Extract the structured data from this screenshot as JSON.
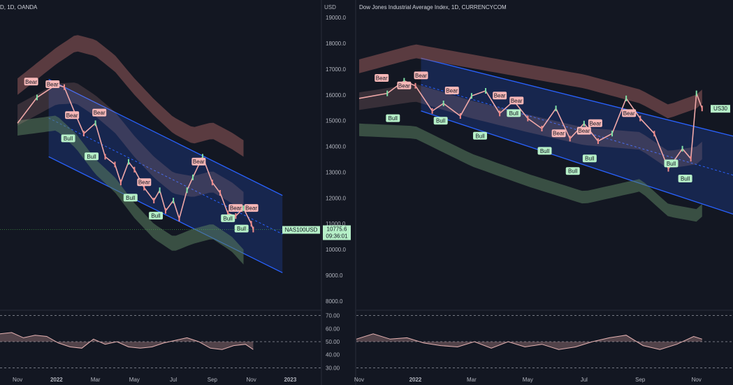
{
  "chart_data": [
    {
      "type": "line",
      "title": "D, 1D, OANDA",
      "currency": "USD",
      "symbol": "NAS100USD",
      "last_price": "10775.6",
      "countdown": "09:36:01",
      "y_ticks": [
        19000.0,
        18000.0,
        17000.0,
        16000.0,
        15000.0,
        14000.0,
        13000.0,
        12000.0,
        11000.0,
        10000.0,
        9000.0,
        8000.0
      ],
      "y_tick_labels": [
        "19000.0",
        "18000.0",
        "17000.0",
        "16000.0",
        "15000.0",
        "14000.0",
        "13000.0",
        "12000.0",
        "11000.0",
        "10000.0",
        "9000.0",
        "8000.0"
      ],
      "ylim": [
        7700,
        19300
      ],
      "x_labels": [
        "Nov",
        "2022",
        "Mar",
        "May",
        "Jul",
        "Sep",
        "Nov",
        "2023"
      ],
      "x_label_month_index": [
        0,
        2,
        4,
        6,
        8,
        10,
        12,
        14
      ],
      "xlim_months": [
        -0.9,
        15.6
      ],
      "series": [
        {
          "name": "price_close",
          "month_index": [
            0,
            1,
            2,
            2.4,
            3,
            3.4,
            4,
            4.5,
            5,
            5.3,
            5.7,
            6,
            6.5,
            7,
            7.3,
            7.6,
            8,
            8.3,
            8.7,
            9,
            9.5,
            10,
            10.4,
            10.8,
            11.2,
            11.6,
            12,
            12.1
          ],
          "values": [
            14900,
            15900,
            16400,
            16300,
            15200,
            14500,
            14900,
            13600,
            13300,
            12600,
            13400,
            13100,
            12400,
            11900,
            12300,
            11500,
            11900,
            11200,
            12300,
            12800,
            13600,
            12600,
            12200,
            11400,
            11300,
            11600,
            11000,
            10775.6
          ]
        }
      ],
      "bands": {
        "upper": {
          "month_index": [
            0,
            2,
            3,
            4,
            5,
            6,
            7,
            8,
            9,
            10,
            11,
            11.6
          ],
          "values": [
            16000,
            17200,
            17700,
            17500,
            16900,
            16000,
            15200,
            14500,
            14100,
            14300,
            13900,
            13600
          ]
        },
        "lower": {
          "month_index": [
            0,
            2,
            3,
            4,
            5,
            6,
            7,
            8,
            9,
            10,
            11,
            11.6
          ],
          "values": [
            15000,
            15200,
            14500,
            13500,
            12800,
            11800,
            11000,
            10500,
            10800,
            11000,
            10500,
            10000
          ]
        }
      },
      "channel": {
        "upper": [
          [
            1.6,
            16600
          ],
          [
            13.6,
            12100
          ]
        ],
        "lower": [
          [
            1.6,
            13600
          ],
          [
            13.6,
            9100
          ]
        ]
      },
      "signals": [
        {
          "label": "Bear",
          "month_index": 0.7,
          "value": 16500
        },
        {
          "label": "Bear",
          "month_index": 1.8,
          "value": 16400
        },
        {
          "label": "Bear",
          "month_index": 2.8,
          "value": 15200
        },
        {
          "label": "Bull",
          "month_index": 2.6,
          "value": 14300
        },
        {
          "label": "Bear",
          "month_index": 4.2,
          "value": 15300
        },
        {
          "label": "Bull",
          "month_index": 3.8,
          "value": 13600
        },
        {
          "label": "Bear",
          "month_index": 6.5,
          "value": 12600
        },
        {
          "label": "Bull",
          "month_index": 5.8,
          "value": 12000
        },
        {
          "label": "Bull",
          "month_index": 7.1,
          "value": 11300
        },
        {
          "label": "Bear",
          "month_index": 9.3,
          "value": 13400
        },
        {
          "label": "Bear",
          "month_index": 11.2,
          "value": 11600
        },
        {
          "label": "Bear",
          "month_index": 12.0,
          "value": 11600
        },
        {
          "label": "Bull",
          "month_index": 10.8,
          "value": 11200
        },
        {
          "label": "Bull",
          "month_index": 11.5,
          "value": 10800
        }
      ],
      "oscillator": {
        "ticks": [
          "70.00",
          "60.00",
          "50.00",
          "40.00",
          "30.00"
        ],
        "tick_values": [
          70,
          60,
          50,
          40,
          30
        ],
        "ylim": [
          27,
          73
        ],
        "levels": [
          70,
          50,
          30
        ],
        "month_index": [
          -0.9,
          -0.3,
          0.3,
          0.9,
          1.5,
          2.1,
          2.7,
          3.3,
          3.9,
          4.5,
          5.1,
          5.7,
          6.3,
          6.9,
          7.5,
          8.1,
          8.7,
          9.3,
          9.9,
          10.5,
          11.1,
          11.7,
          12.1
        ],
        "values": [
          56,
          57,
          53,
          55,
          54,
          49,
          46,
          45,
          52,
          48,
          50,
          46,
          45,
          46,
          49,
          51,
          53,
          50,
          45,
          44,
          47,
          48,
          44
        ]
      }
    },
    {
      "type": "line",
      "title": "Dow Jones Industrial Average Index, 1D, CURRENCYCOM",
      "symbol": "US30",
      "x_labels": [
        "Nov",
        "2022",
        "Mar",
        "May",
        "Jul",
        "Sep",
        "Nov"
      ],
      "x_label_month_index": [
        0,
        2,
        4,
        6,
        8,
        10,
        12
      ],
      "xlim_months": [
        -0.1,
        13.3
      ],
      "ylim": [
        0,
        100
      ],
      "series": [
        {
          "name": "price_close",
          "month_index": [
            0,
            1,
            1.6,
            2,
            2.6,
            3,
            3.6,
            4,
            4.5,
            5,
            5.5,
            6,
            6.5,
            7,
            7.5,
            8,
            8.5,
            9,
            9.5,
            10,
            10.5,
            11,
            11.5,
            11.8,
            12,
            12.2
          ],
          "values": [
            72,
            74,
            79,
            77,
            67,
            70,
            65,
            73,
            75,
            66,
            71,
            64,
            60,
            68,
            56,
            62,
            55,
            58,
            72,
            64,
            58,
            44,
            52,
            48,
            74,
            68
          ]
        }
      ],
      "bands": {
        "upper": {
          "month_index": [
            0,
            2,
            4,
            6,
            8,
            10,
            11,
            12,
            12.2
          ],
          "values": [
            82,
            88,
            84,
            80,
            76,
            70,
            64,
            68,
            70
          ]
        },
        "lower": {
          "month_index": [
            0,
            2,
            4,
            6,
            8,
            10,
            11,
            12,
            12.2
          ],
          "values": [
            62,
            61,
            50,
            42,
            35,
            40,
            30,
            28,
            30
          ]
        }
      },
      "channel": {
        "upper": [
          [
            2.2,
            88
          ],
          [
            13.3,
            57
          ]
        ],
        "lower": [
          [
            2.2,
            67
          ],
          [
            13.3,
            26
          ]
        ]
      },
      "signals": [
        {
          "label": "Bear",
          "month_index": 0.8,
          "value": 80
        },
        {
          "label": "Bear",
          "month_index": 1.6,
          "value": 77
        },
        {
          "label": "Bear",
          "month_index": 2.2,
          "value": 81
        },
        {
          "label": "Bull",
          "month_index": 1.2,
          "value": 64
        },
        {
          "label": "Bear",
          "month_index": 3.3,
          "value": 75
        },
        {
          "label": "Bull",
          "month_index": 2.9,
          "value": 63
        },
        {
          "label": "Bear",
          "month_index": 5.0,
          "value": 73
        },
        {
          "label": "Bear",
          "month_index": 5.6,
          "value": 71
        },
        {
          "label": "Bull",
          "month_index": 5.5,
          "value": 66
        },
        {
          "label": "Bull",
          "month_index": 4.3,
          "value": 57
        },
        {
          "label": "Bear",
          "month_index": 7.1,
          "value": 58
        },
        {
          "label": "Bear",
          "month_index": 8.4,
          "value": 62
        },
        {
          "label": "Bear",
          "month_index": 8.0,
          "value": 59
        },
        {
          "label": "Bull",
          "month_index": 6.6,
          "value": 51
        },
        {
          "label": "Bull",
          "month_index": 8.2,
          "value": 48
        },
        {
          "label": "Bull",
          "month_index": 7.6,
          "value": 43
        },
        {
          "label": "Bear",
          "month_index": 9.6,
          "value": 66
        },
        {
          "label": "Bull",
          "month_index": 11.1,
          "value": 46
        },
        {
          "label": "Bull",
          "month_index": 11.6,
          "value": 40
        }
      ],
      "oscillator": {
        "ylim": [
          27,
          73
        ],
        "levels": [
          70,
          50,
          30
        ],
        "month_index": [
          -0.1,
          0.5,
          1.1,
          1.7,
          2.3,
          2.9,
          3.5,
          4.1,
          4.7,
          5.3,
          5.9,
          6.5,
          7.1,
          7.7,
          8.3,
          8.9,
          9.5,
          10.1,
          10.7,
          11.3,
          11.9,
          12.2
        ],
        "values": [
          52,
          56,
          52,
          53,
          49,
          47,
          46,
          50,
          45,
          50,
          46,
          48,
          44,
          46,
          50,
          53,
          55,
          47,
          44,
          48,
          54,
          52
        ]
      }
    }
  ]
}
